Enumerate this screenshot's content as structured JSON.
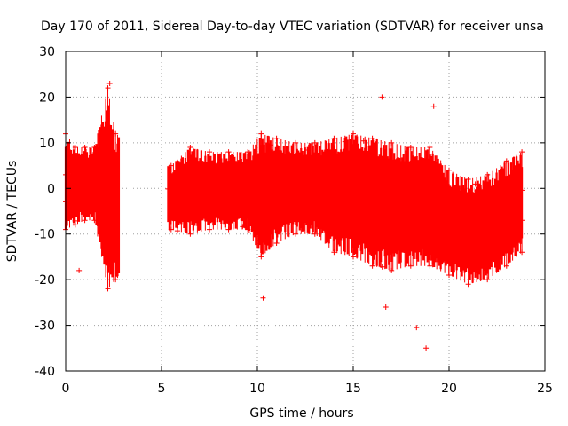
{
  "chart_data": {
    "type": "scatter",
    "title": "Day 170 of 2011, Sidereal Day-to-day VTEC variation (SDTVAR) for receiver unsa",
    "xlabel": "GPS time / hours",
    "ylabel": "SDTVAR / TECUs",
    "xlim": [
      0,
      25
    ],
    "ylim": [
      -40,
      30
    ],
    "xticks": [
      0,
      5,
      10,
      15,
      20,
      25
    ],
    "yticks": [
      -40,
      -30,
      -20,
      -10,
      0,
      10,
      20,
      30
    ],
    "grid": true,
    "marker": "+",
    "color": "#ff0000",
    "series": [
      {
        "name": "SDTVAR",
        "x": [
          0.0,
          0.5,
          1.0,
          1.5,
          2.2,
          2.6,
          5.5,
          6.5,
          7.5,
          8.5,
          9.5,
          10.2,
          11.0,
          12.0,
          13.0,
          14.0,
          15.0,
          16.0,
          17.0,
          18.0,
          19.0,
          20.0,
          21.0,
          22.0,
          23.0,
          23.8
        ],
        "y_mid": [
          3,
          2,
          2,
          1,
          0,
          -5,
          -3,
          -2,
          -1,
          -1,
          -1,
          -2,
          -2,
          -1,
          0,
          1,
          -3,
          -4,
          -3,
          -3,
          -5,
          -7,
          -9,
          -10,
          -8,
          -7
        ],
        "y_min": [
          -9,
          -8,
          -7,
          -7,
          -22,
          -20,
          -9,
          -10,
          -9,
          -9,
          -9,
          -15,
          -12,
          -10,
          -10,
          -14,
          -15,
          -17,
          -18,
          -17,
          -17,
          -19,
          -21,
          -20,
          -17,
          -14
        ],
        "y_max": [
          12,
          9,
          9,
          9,
          22,
          12,
          5,
          9,
          8,
          8,
          8,
          12,
          11,
          10,
          10,
          11,
          12,
          11,
          10,
          9,
          9,
          4,
          2,
          3,
          6,
          8
        ],
        "outliers": [
          {
            "x": 0.7,
            "y": -18
          },
          {
            "x": 2.3,
            "y": 23
          },
          {
            "x": 16.5,
            "y": 20
          },
          {
            "x": 18.3,
            "y": -30.5
          },
          {
            "x": 18.8,
            "y": -35
          },
          {
            "x": 19.2,
            "y": 18
          },
          {
            "x": 10.3,
            "y": -24
          },
          {
            "x": 16.7,
            "y": -26
          }
        ]
      }
    ]
  }
}
